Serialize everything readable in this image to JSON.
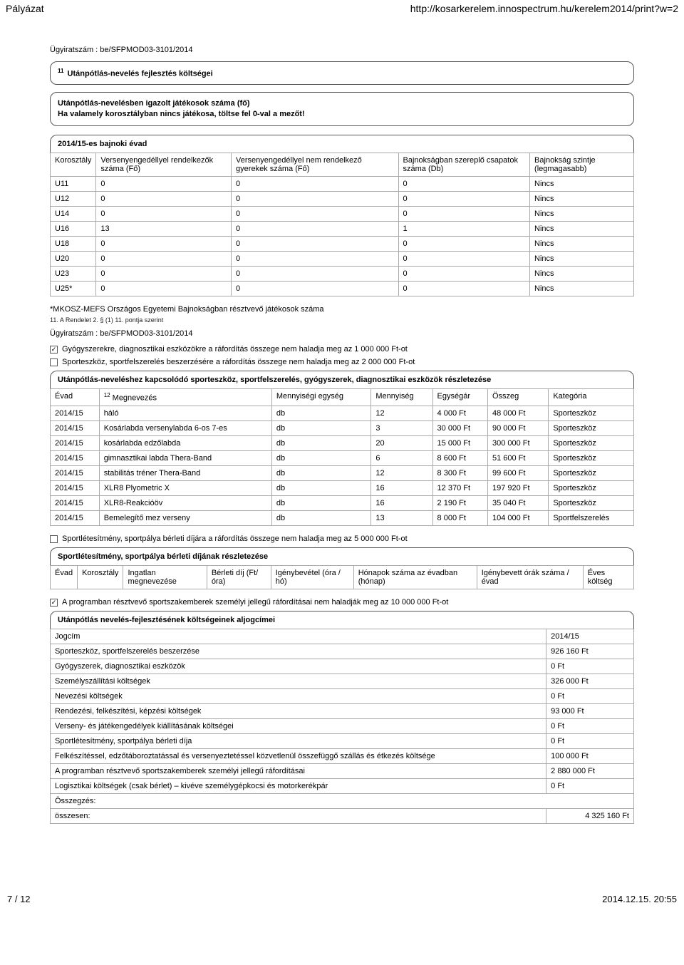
{
  "header": {
    "left": "Pályázat",
    "right": "http://kosarkerelem.innospectrum.hu/kerelem2014/print?w=2"
  },
  "case_number_label": "Ügyiratszám : be/SFPMOD03-3101/2014",
  "title_sup": "11",
  "title_text": "Utánpótlás-nevelés fejlesztés költségei",
  "info_line1": "Utánpótlás-nevelésben igazolt játékosok száma (fő)",
  "info_line2": "Ha valamely korosztályban nincs játékosa, töltse fel 0-val a mezőt!",
  "season_header": "2014/15-es bajnoki évad",
  "t1_headers": [
    "Korosztály",
    "Versenyengedéllyel rendelkezők száma (Fő)",
    "Versenyengedéllyel nem rendelkező gyerekek száma (Fő)",
    "Bajnokságban szereplő csapatok száma (Db)",
    "Bajnokság szintje (legmagasabb)"
  ],
  "t1_rows": [
    [
      "U11",
      "0",
      "0",
      "0",
      "Nincs"
    ],
    [
      "U12",
      "0",
      "0",
      "0",
      "Nincs"
    ],
    [
      "U14",
      "0",
      "0",
      "0",
      "Nincs"
    ],
    [
      "U16",
      "13",
      "0",
      "1",
      "Nincs"
    ],
    [
      "U18",
      "0",
      "0",
      "0",
      "Nincs"
    ],
    [
      "U20",
      "0",
      "0",
      "0",
      "Nincs"
    ],
    [
      "U23",
      "0",
      "0",
      "0",
      "Nincs"
    ],
    [
      "U25*",
      "0",
      "0",
      "0",
      "Nincs"
    ]
  ],
  "footnote_mkosz": "*MKOSZ-MEFS Országos Egyetemi Bajnokságban résztvevő játékosok száma",
  "small_note": "11. A Rendelet 2. § (1) 11. pontja szerint",
  "case_number_label2": "Ügyiratszám : be/SFPMOD03-3101/2014",
  "check1": "Gyógyszerekre, diagnosztikai eszközökre a ráfordítás összege nem haladja meg az 1 000 000 Ft-ot",
  "check2": "Sporteszköz, sportfelszerelés beszerzésére a ráfordítás összege nem haladja meg az 2 000 000 Ft-ot",
  "t2_header": "Utánpótlás-neveléshez kapcsolódó sporteszköz, sportfelszerelés, gyógyszerek, diagnosztikai eszközök részletezése",
  "t2_headers": [
    "Évad",
    "Megnevezés",
    "Mennyiségi egység",
    "Mennyiség",
    "Egységár",
    "Összeg",
    "Kategória"
  ],
  "t2_rows": [
    [
      "2014/15",
      "háló",
      "db",
      "12",
      "4 000 Ft",
      "48 000 Ft",
      "Sporteszköz"
    ],
    [
      "2014/15",
      "Kosárlabda versenylabda 6-os 7-es",
      "db",
      "3",
      "30 000 Ft",
      "90 000 Ft",
      "Sporteszköz"
    ],
    [
      "2014/15",
      "kosárlabda edzőlabda",
      "db",
      "20",
      "15 000 Ft",
      "300 000 Ft",
      "Sporteszköz"
    ],
    [
      "2014/15",
      "gimnasztikai labda Thera-Band",
      "db",
      "6",
      "8 600 Ft",
      "51 600 Ft",
      "Sporteszköz"
    ],
    [
      "2014/15",
      "stabilitás tréner Thera-Band",
      "db",
      "12",
      "8 300 Ft",
      "99 600 Ft",
      "Sporteszköz"
    ],
    [
      "2014/15",
      "XLR8 Plyometric X",
      "db",
      "16",
      "12 370 Ft",
      "197 920 Ft",
      "Sporteszköz"
    ],
    [
      "2014/15",
      "XLR8-Reakcióöv",
      "db",
      "16",
      "2 190 Ft",
      "35 040 Ft",
      "Sporteszköz"
    ],
    [
      "2014/15",
      "Bemelegítő mez verseny",
      "db",
      "13",
      "8 000 Ft",
      "104 000 Ft",
      "Sportfelszerelés"
    ]
  ],
  "check3": "Sportlétesítmény, sportpálya bérleti díjára a ráfordítás összege nem haladja meg az 5 000 000 Ft-ot",
  "t3_header": "Sportlétesítmény, sportpálya bérleti díjának részletezése",
  "t3_headers": [
    "Évad",
    "Korosztály",
    "Ingatlan megnevezése",
    "Bérleti díj (Ft/óra)",
    "Igénybevétel (óra / hó)",
    "Hónapok száma az évadban (hónap)",
    "Igénybevett órák száma / évad",
    "Éves költség"
  ],
  "check4": "A programban résztvevő sportszakemberek személyi jellegű ráfordításai nem haladják meg az 10 000 000 Ft-ot",
  "t4_header": "Utánpótlás nevelés-fejlesztésének költségeinek aljogcímei",
  "t4_head_left": "Jogcím",
  "t4_head_right": "2014/15",
  "t4_rows": [
    [
      "Sporteszköz, sportfelszerelés beszerzése",
      "926 160 Ft"
    ],
    [
      "Gyógyszerek, diagnosztikai eszközök",
      "0 Ft"
    ],
    [
      "Személyszállítási költségek",
      "326 000 Ft"
    ],
    [
      "Nevezési költségek",
      "0 Ft"
    ],
    [
      "Rendezési, felkészítési, képzési költségek",
      "93 000 Ft"
    ],
    [
      "Verseny- és játékengedélyek kiállításának költségei",
      "0 Ft"
    ],
    [
      "Sportlétesítmény, sportpálya bérleti díja",
      "0 Ft"
    ],
    [
      "Felkészítéssel, edzőtáboroztatással és versenyeztetéssel közvetlenül összefüggő szállás és étkezés költsége",
      "100 000 Ft"
    ],
    [
      "A programban résztvevő sportszakemberek személyi jellegű ráfordításai",
      "2 880 000 Ft"
    ],
    [
      "Logisztikai költségek (csak bérlet) – kivéve személygépkocsi és motorkerékpár",
      "0 Ft"
    ]
  ],
  "sum_label": "Összegzés:",
  "total_label": "összesen:",
  "total_value": "4 325 160 Ft",
  "footer": {
    "left": "7 / 12",
    "right": "2014.12.15. 20:55"
  }
}
